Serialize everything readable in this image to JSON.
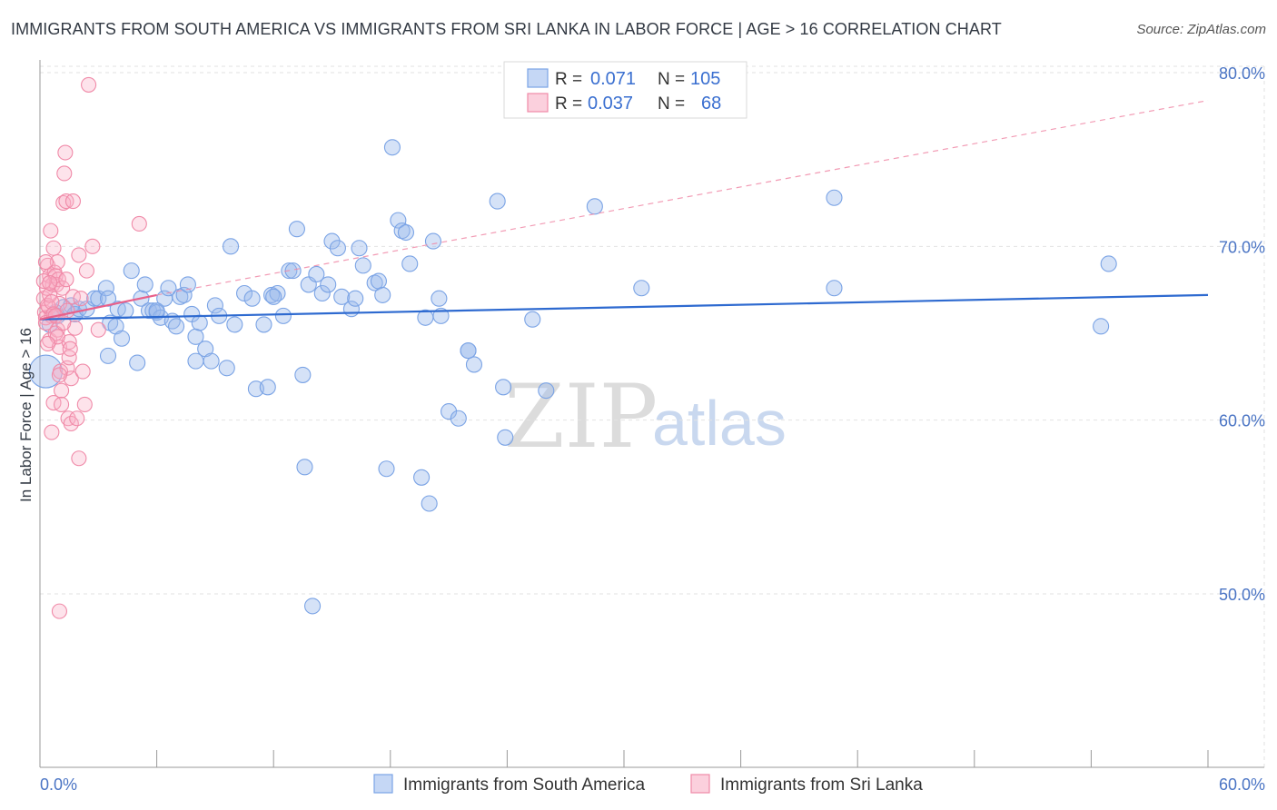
{
  "title": "IMMIGRANTS FROM SOUTH AMERICA VS IMMIGRANTS FROM SRI LANKA IN LABOR FORCE | AGE > 16 CORRELATION CHART",
  "source": "Source: ZipAtlas.com",
  "watermark": {
    "zip": "ZIP",
    "atlas": "atlas"
  },
  "legend": {
    "r_label": "R =",
    "n_label": "N =",
    "rows": [
      {
        "r": "0.071",
        "n": "105",
        "color": "#7aa3e5"
      },
      {
        "r": "0.037",
        "n": "68",
        "color": "#f08aa8"
      }
    ]
  },
  "chart_data": {
    "type": "scatter",
    "title": "IMMIGRANTS FROM SOUTH AMERICA VS IMMIGRANTS FROM SRI LANKA IN LABOR FORCE | AGE > 16 CORRELATION CHART",
    "xlabel": "",
    "ylabel": "In Labor Force | Age > 16",
    "xlim": [
      0,
      60
    ],
    "ylim": [
      40,
      82
    ],
    "x_tick_labels": [
      "0.0%",
      "60.0%"
    ],
    "y_ticks": [
      50,
      60,
      70,
      80
    ],
    "y_tick_labels": [
      "50.0%",
      "60.0%",
      "70.0%",
      "80.0%"
    ],
    "grid": true,
    "legend_position": "bottom",
    "series": [
      {
        "name": "Immigrants from South America",
        "color": "#7aa3e5",
        "trend": {
          "x0": 0,
          "y0": 65.8,
          "x1": 60,
          "y1": 67.2,
          "style": "solid"
        },
        "points": [
          [
            0.3,
            62.8
          ],
          [
            0.5,
            65.5
          ],
          [
            0.8,
            66.2
          ],
          [
            0.9,
            66.0
          ],
          [
            1.2,
            66.5
          ],
          [
            1.6,
            66.6
          ],
          [
            1.8,
            66.1
          ],
          [
            2.0,
            66.4
          ],
          [
            2.4,
            66.4
          ],
          [
            2.8,
            67.0
          ],
          [
            3.0,
            67.0
          ],
          [
            3.4,
            67.6
          ],
          [
            3.5,
            63.7
          ],
          [
            3.6,
            65.6
          ],
          [
            3.9,
            65.4
          ],
          [
            4.0,
            66.4
          ],
          [
            4.2,
            64.7
          ],
          [
            4.4,
            66.3
          ],
          [
            4.7,
            68.6
          ],
          [
            5.0,
            63.3
          ],
          [
            5.2,
            67.0
          ],
          [
            5.4,
            67.8
          ],
          [
            5.6,
            66.3
          ],
          [
            5.8,
            66.3
          ],
          [
            6.0,
            66.2
          ],
          [
            6.2,
            65.9
          ],
          [
            6.4,
            67.0
          ],
          [
            6.6,
            67.6
          ],
          [
            6.8,
            65.7
          ],
          [
            7.0,
            65.4
          ],
          [
            7.2,
            67.1
          ],
          [
            7.4,
            67.2
          ],
          [
            7.6,
            67.8
          ],
          [
            7.8,
            66.1
          ],
          [
            8.0,
            64.8
          ],
          [
            8.2,
            65.6
          ],
          [
            8.5,
            64.1
          ],
          [
            8.8,
            63.4
          ],
          [
            9.0,
            66.6
          ],
          [
            9.2,
            66.0
          ],
          [
            9.6,
            63.0
          ],
          [
            9.8,
            70.0
          ],
          [
            10.0,
            65.5
          ],
          [
            10.5,
            67.3
          ],
          [
            10.9,
            67.0
          ],
          [
            11.1,
            61.8
          ],
          [
            11.5,
            65.5
          ],
          [
            11.7,
            61.9
          ],
          [
            11.9,
            67.2
          ],
          [
            12.2,
            67.3
          ],
          [
            12.5,
            66.0
          ],
          [
            12.8,
            68.6
          ],
          [
            13.0,
            68.6
          ],
          [
            13.2,
            71.0
          ],
          [
            13.5,
            62.6
          ],
          [
            13.6,
            57.3
          ],
          [
            13.8,
            67.8
          ],
          [
            14.2,
            68.4
          ],
          [
            14.5,
            67.3
          ],
          [
            14.8,
            67.8
          ],
          [
            15.0,
            70.3
          ],
          [
            15.3,
            69.9
          ],
          [
            15.5,
            67.1
          ],
          [
            16.0,
            66.4
          ],
          [
            16.2,
            67.0
          ],
          [
            16.4,
            69.9
          ],
          [
            16.6,
            68.9
          ],
          [
            17.2,
            67.9
          ],
          [
            17.4,
            68.0
          ],
          [
            17.6,
            67.2
          ],
          [
            17.8,
            57.2
          ],
          [
            18.1,
            75.7
          ],
          [
            18.4,
            71.5
          ],
          [
            18.6,
            70.9
          ],
          [
            18.8,
            70.8
          ],
          [
            19.0,
            69.0
          ],
          [
            19.6,
            56.7
          ],
          [
            19.8,
            65.9
          ],
          [
            20.0,
            55.2
          ],
          [
            20.2,
            70.3
          ],
          [
            20.5,
            67.0
          ],
          [
            20.6,
            66.0
          ],
          [
            21.0,
            60.5
          ],
          [
            21.5,
            60.1
          ],
          [
            22.0,
            64.0
          ],
          [
            22.3,
            63.2
          ],
          [
            23.5,
            72.6
          ],
          [
            23.8,
            61.9
          ],
          [
            23.9,
            59.0
          ],
          [
            25.3,
            65.8
          ],
          [
            26.0,
            61.7
          ],
          [
            28.5,
            72.3
          ],
          [
            30.9,
            67.6
          ],
          [
            40.8,
            72.8
          ],
          [
            40.8,
            67.6
          ],
          [
            54.5,
            65.4
          ],
          [
            54.9,
            69.0
          ],
          [
            14.0,
            49.3
          ],
          [
            22.0,
            64.0
          ],
          [
            8.0,
            63.4
          ],
          [
            6.0,
            66.3
          ],
          [
            12.0,
            67.1
          ],
          [
            3.5,
            67.0
          ]
        ]
      },
      {
        "name": "Immigrants from Sri Lanka",
        "color": "#f08aa8",
        "trend": {
          "x0": 0,
          "y0": 65.8,
          "x1": 6,
          "y1": 67.2,
          "style": "solid"
        },
        "trend_extended": {
          "x0": 6,
          "y0": 67.2,
          "x1": 60,
          "y1": 78.4,
          "style": "dashed"
        },
        "points": [
          [
            0.2,
            67.0
          ],
          [
            0.25,
            66.2
          ],
          [
            0.3,
            65.9
          ],
          [
            0.35,
            67.6
          ],
          [
            0.4,
            68.9
          ],
          [
            0.45,
            66.5
          ],
          [
            0.5,
            68.3
          ],
          [
            0.5,
            64.6
          ],
          [
            0.55,
            70.9
          ],
          [
            0.6,
            66.0
          ],
          [
            0.65,
            67.8
          ],
          [
            0.7,
            69.9
          ],
          [
            0.75,
            68.5
          ],
          [
            0.8,
            68.3
          ],
          [
            0.85,
            67.8
          ],
          [
            0.9,
            69.1
          ],
          [
            0.9,
            65.2
          ],
          [
            0.95,
            68.1
          ],
          [
            1.0,
            66.7
          ],
          [
            1.0,
            64.2
          ],
          [
            1.05,
            62.8
          ],
          [
            1.1,
            61.7
          ],
          [
            1.15,
            67.6
          ],
          [
            1.2,
            72.5
          ],
          [
            1.25,
            74.2
          ],
          [
            1.3,
            75.4
          ],
          [
            1.35,
            72.6
          ],
          [
            1.35,
            68.1
          ],
          [
            1.4,
            66.3
          ],
          [
            1.4,
            63.0
          ],
          [
            1.45,
            60.1
          ],
          [
            1.5,
            64.5
          ],
          [
            1.5,
            63.6
          ],
          [
            1.55,
            64.1
          ],
          [
            1.6,
            62.4
          ],
          [
            1.6,
            59.8
          ],
          [
            1.7,
            72.6
          ],
          [
            1.7,
            67.1
          ],
          [
            1.8,
            65.3
          ],
          [
            1.9,
            60.1
          ],
          [
            2.0,
            69.5
          ],
          [
            2.0,
            57.8
          ],
          [
            2.1,
            67.0
          ],
          [
            2.2,
            62.8
          ],
          [
            2.3,
            60.9
          ],
          [
            2.4,
            68.6
          ],
          [
            2.5,
            79.3
          ],
          [
            2.7,
            70.0
          ],
          [
            3.0,
            65.2
          ],
          [
            5.1,
            71.3
          ],
          [
            0.6,
            59.3
          ],
          [
            0.7,
            61.0
          ],
          [
            1.0,
            49.0
          ],
          [
            0.3,
            65.6
          ],
          [
            0.4,
            66.6
          ],
          [
            0.5,
            67.2
          ],
          [
            0.6,
            66.8
          ],
          [
            0.7,
            66.1
          ],
          [
            0.8,
            65.0
          ],
          [
            0.9,
            64.8
          ],
          [
            1.0,
            62.6
          ],
          [
            1.1,
            60.9
          ],
          [
            0.2,
            68.0
          ],
          [
            0.3,
            69.1
          ],
          [
            0.4,
            64.4
          ],
          [
            0.5,
            67.9
          ],
          [
            0.8,
            66.0
          ],
          [
            1.2,
            65.6
          ]
        ]
      }
    ]
  },
  "bottom_legend": [
    {
      "label": "Immigrants from South America",
      "color": "#7aa3e5"
    },
    {
      "label": "Immigrants from Sri Lanka",
      "color": "#f08aa8"
    }
  ]
}
